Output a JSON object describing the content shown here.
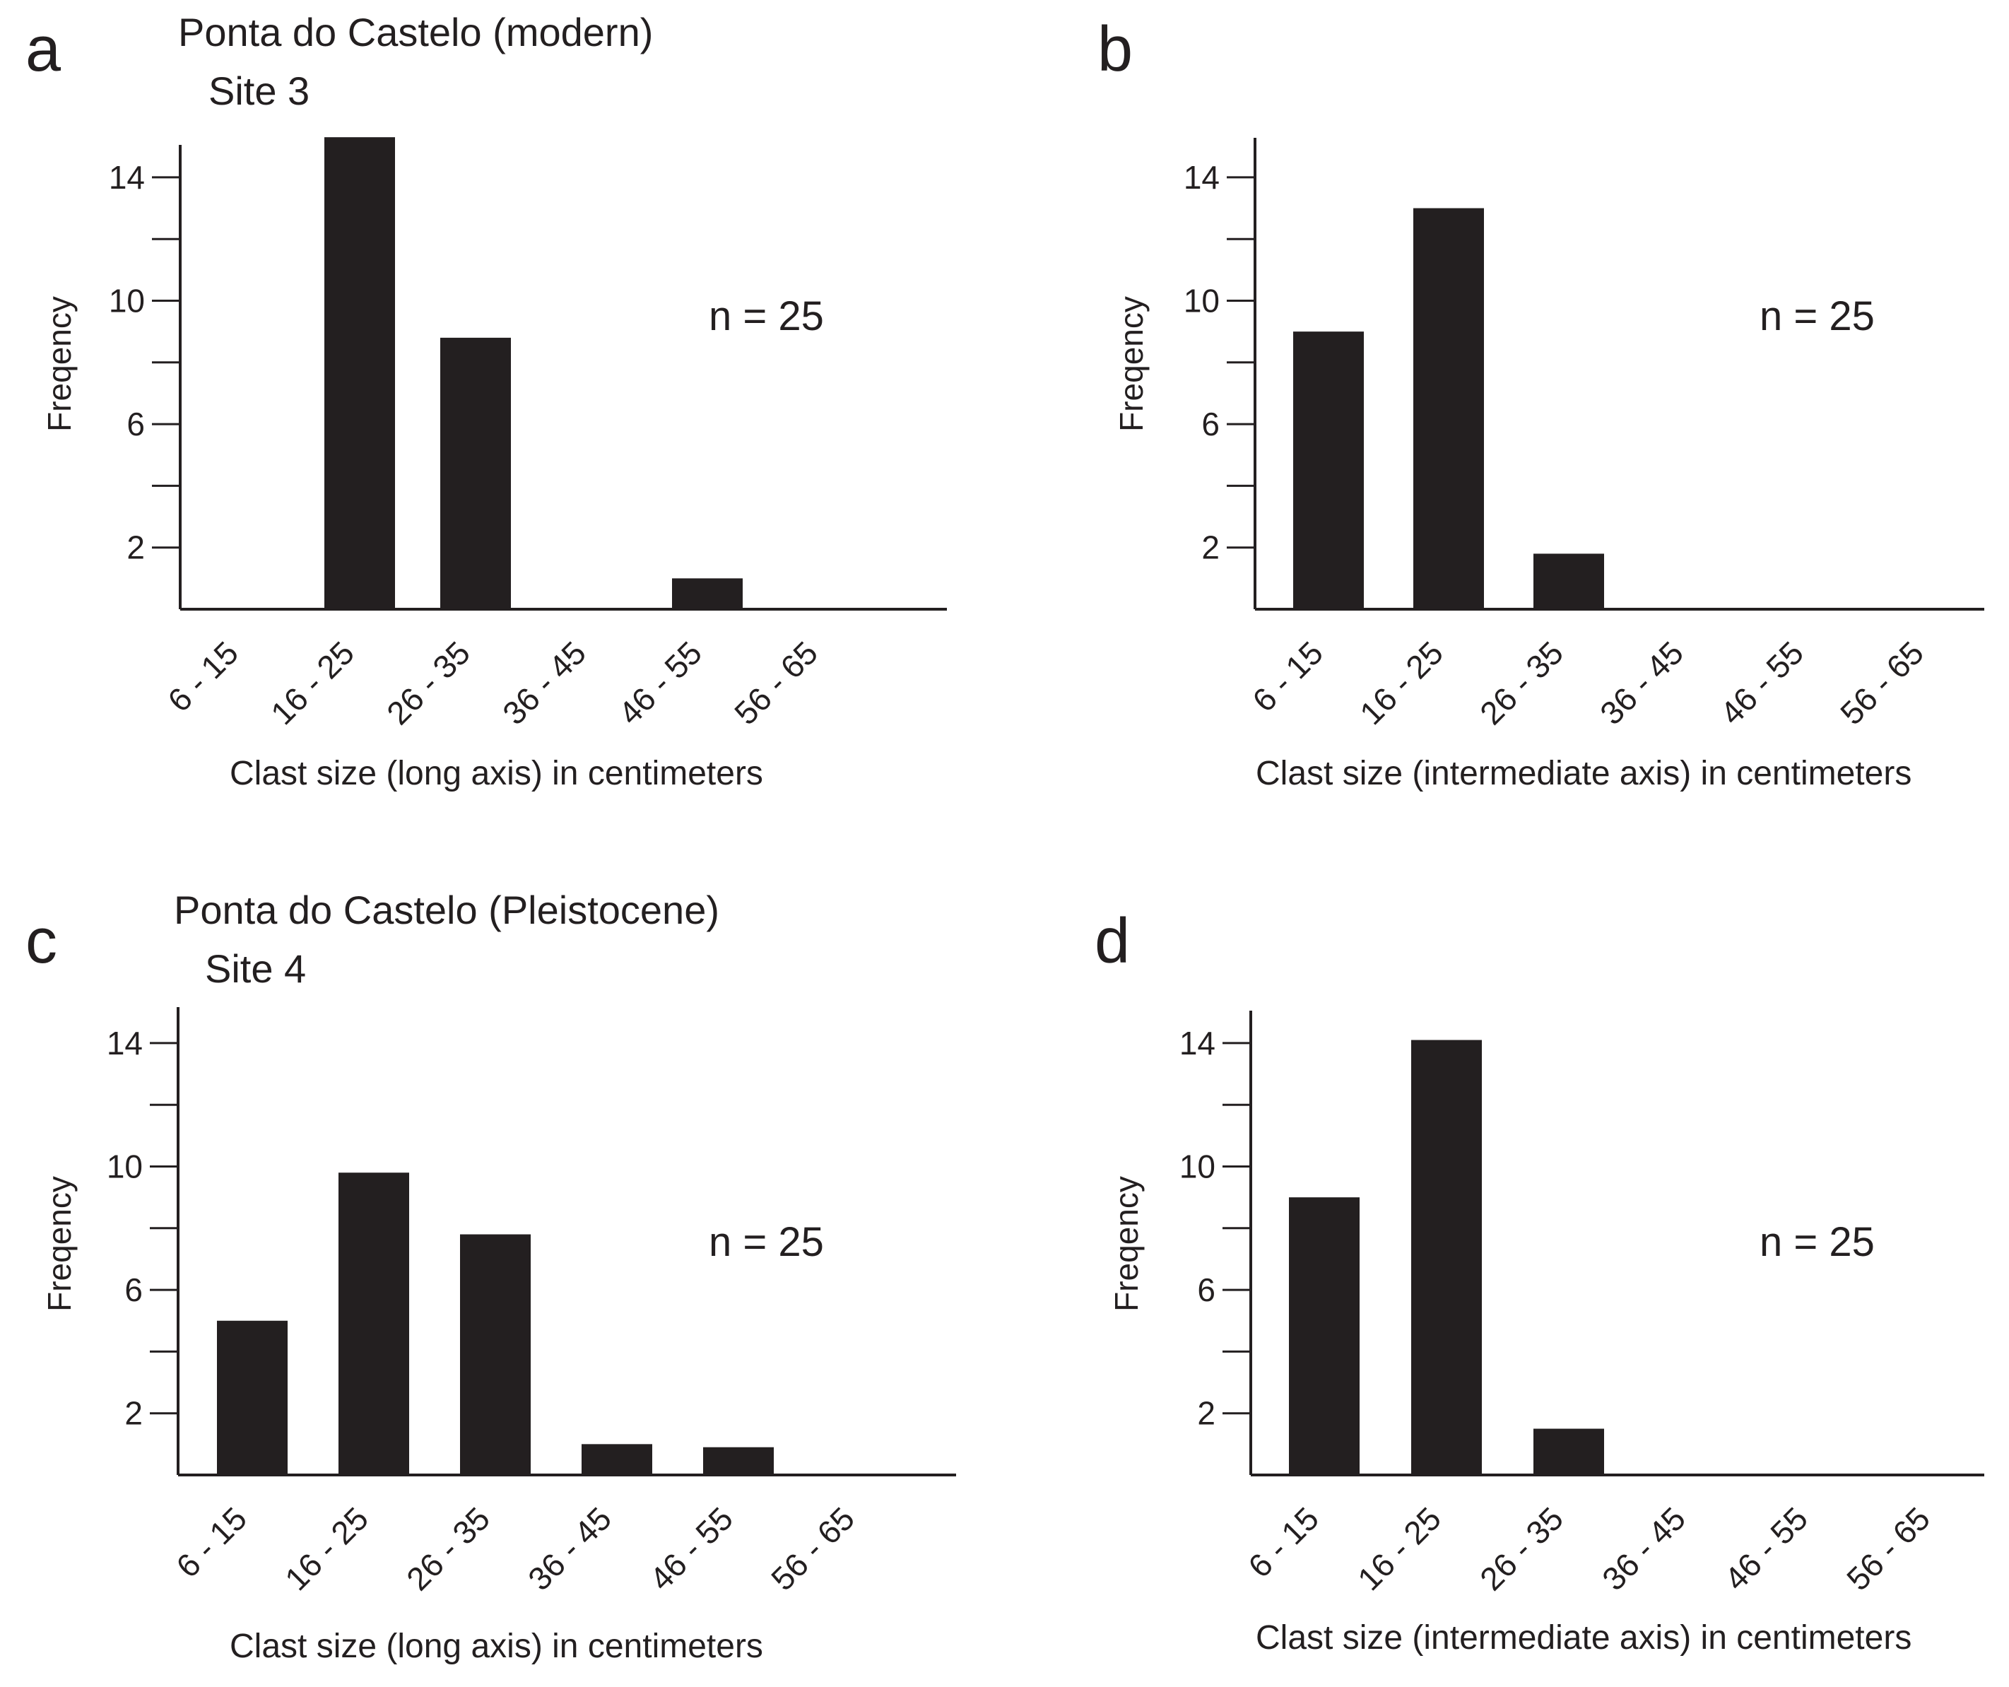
{
  "chart_data": [
    {
      "panel": "a",
      "type": "bar",
      "title": "Ponta do Castelo (modern)",
      "subtitle": "Site 3",
      "categories": [
        "6 - 15",
        "16 - 25",
        "26 - 35",
        "36 - 45",
        "46 - 55",
        "56 - 65"
      ],
      "values": [
        0,
        15.3,
        8.8,
        0,
        1,
        0
      ],
      "ylabel": "Freqency",
      "xlabel": "Clast size (long axis) in centimeters",
      "yticks": [
        2,
        6,
        10,
        14
      ],
      "ylim": [
        0,
        15.5
      ],
      "annotation": "n = 25"
    },
    {
      "panel": "b",
      "type": "bar",
      "title": "",
      "subtitle": "",
      "categories": [
        "6 - 15",
        "16 - 25",
        "26 - 35",
        "36 - 45",
        "46 - 55",
        "56 - 65"
      ],
      "values": [
        9,
        13,
        1.8,
        0,
        0,
        0
      ],
      "ylabel": "Freqency",
      "xlabel": "Clast size (intermediate axis) in centimeters",
      "yticks": [
        2,
        6,
        10,
        14
      ],
      "ylim": [
        0,
        15.5
      ],
      "annotation": "n = 25"
    },
    {
      "panel": "c",
      "type": "bar",
      "title": "Ponta do Castelo (Pleistocene)",
      "subtitle": "Site 4",
      "categories": [
        "6 - 15",
        "16 - 25",
        "26 - 35",
        "36 - 45",
        "46 - 55",
        "56 - 65"
      ],
      "values": [
        5,
        9.8,
        7.8,
        1,
        0.9,
        0
      ],
      "ylabel": "Freqency",
      "xlabel": "Clast size (long axis) in centimeters",
      "yticks": [
        2,
        6,
        10,
        14
      ],
      "ylim": [
        0,
        15
      ],
      "annotation": "n = 25"
    },
    {
      "panel": "d",
      "type": "bar",
      "title": "",
      "subtitle": "",
      "categories": [
        "6 - 15",
        "16 - 25",
        "26 - 35",
        "36 - 45",
        "46 - 55",
        "56 - 65"
      ],
      "values": [
        9,
        14.1,
        1.5,
        0,
        0,
        0
      ],
      "ylabel": "Freqency",
      "xlabel": "Clast size (intermediate axis) in centimeters",
      "yticks": [
        2,
        6,
        10,
        14
      ],
      "ylim": [
        0,
        15
      ],
      "annotation": "n = 25"
    }
  ]
}
